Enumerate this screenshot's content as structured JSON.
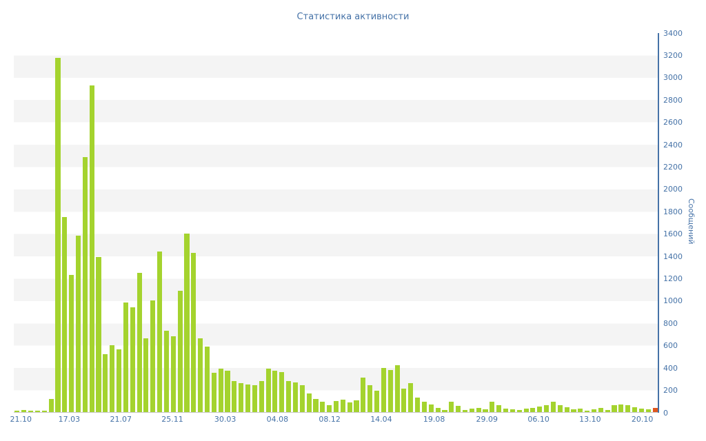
{
  "page": {
    "background_color": "#ffffff"
  },
  "chart_data": {
    "type": "bar",
    "title": "Статистика активности",
    "ylabel": "Сообщений",
    "xlabel": "",
    "ylim": [
      0,
      3400
    ],
    "ytick_step": 200,
    "grid": "horizontal-alternating-bands",
    "band_color": "#f4f4f4",
    "axis_color": "#4572a7",
    "text_color": "#4572a7",
    "bar_color": "#a4d32e",
    "highlight_color": "#e0561e",
    "highlight_index": 94,
    "legend": "none",
    "values": [
      15,
      20,
      10,
      12,
      10,
      120,
      3180,
      1750,
      1230,
      1580,
      2290,
      2930,
      1390,
      520,
      600,
      560,
      980,
      940,
      1250,
      660,
      1000,
      1440,
      730,
      680,
      1090,
      1600,
      1430,
      660,
      590,
      350,
      390,
      370,
      280,
      260,
      250,
      240,
      280,
      390,
      370,
      360,
      280,
      265,
      240,
      170,
      120,
      90,
      60,
      100,
      110,
      85,
      105,
      310,
      240,
      190,
      395,
      380,
      420,
      210,
      260,
      130,
      90,
      70,
      35,
      20,
      90,
      55,
      20,
      30,
      35,
      25,
      90,
      60,
      30,
      25,
      20,
      30,
      40,
      50,
      60,
      90,
      60,
      45,
      25,
      30,
      15,
      25,
      35,
      20,
      60,
      70,
      60,
      45,
      30,
      25,
      35
    ],
    "x_tick_labels": [
      {
        "label": "21.10",
        "pos": 0.011
      },
      {
        "label": "17.03",
        "pos": 0.086
      },
      {
        "label": "21.07",
        "pos": 0.166
      },
      {
        "label": "25.11",
        "pos": 0.246
      },
      {
        "label": "30.03",
        "pos": 0.328
      },
      {
        "label": "04.08",
        "pos": 0.409
      },
      {
        "label": "08.12",
        "pos": 0.49
      },
      {
        "label": "14.04",
        "pos": 0.57
      },
      {
        "label": "19.08",
        "pos": 0.652
      },
      {
        "label": "29.09",
        "pos": 0.734
      },
      {
        "label": "06.10",
        "pos": 0.814
      },
      {
        "label": "13.10",
        "pos": 0.894
      },
      {
        "label": "20.10",
        "pos": 0.975
      }
    ]
  }
}
